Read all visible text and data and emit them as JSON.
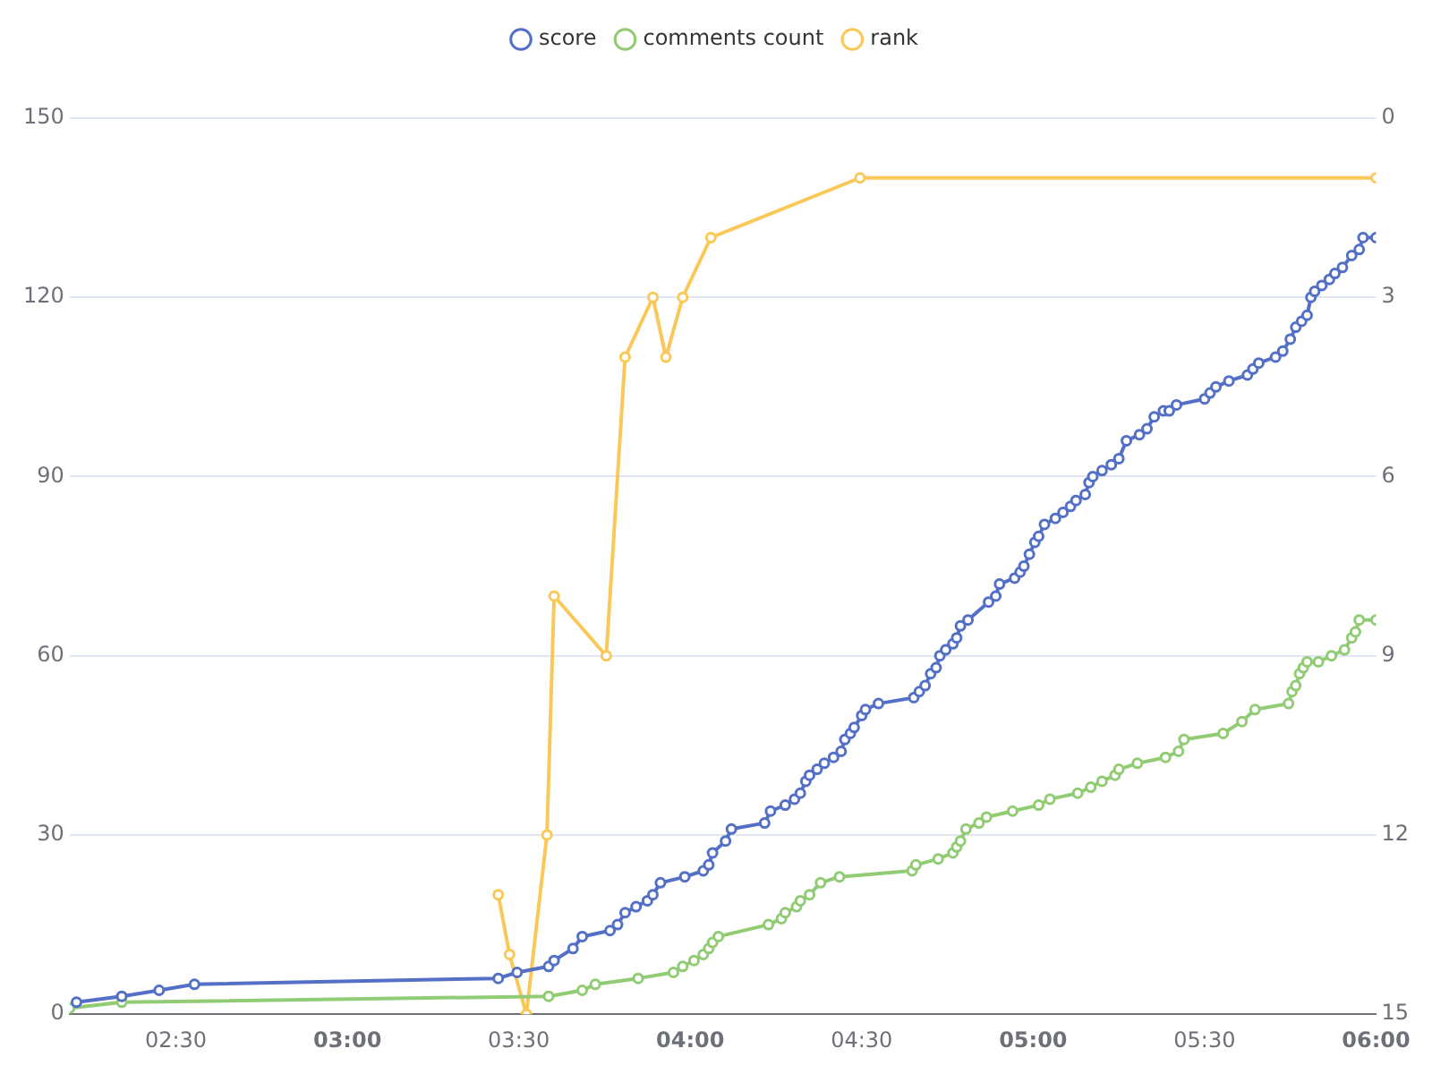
{
  "chart_data": {
    "type": "line",
    "legend": "top",
    "grid": "y",
    "marker": "circle",
    "line_style": "solid",
    "xlim": [
      2.19,
      6
    ],
    "xticks": [
      {
        "value": 2.5,
        "label": "02:30"
      },
      {
        "value": 3,
        "label": "03:00"
      },
      {
        "value": 3.5,
        "label": "03:30"
      },
      {
        "value": 4,
        "label": "04:00"
      },
      {
        "value": 4.5,
        "label": "04:30"
      },
      {
        "value": 5,
        "label": "05:00"
      },
      {
        "value": 5.5,
        "label": "05:30"
      },
      {
        "value": 6,
        "label": "06:00"
      }
    ],
    "ylim": [
      0,
      150
    ],
    "yticks": [
      0,
      30,
      60,
      90,
      120,
      150
    ],
    "y2lim": [
      15,
      0
    ],
    "y2ticks": [
      0,
      3,
      6,
      9,
      12,
      15
    ],
    "series": [
      {
        "name": "score",
        "color": "#5470c6",
        "x": [
          2.21,
          2.342,
          2.451,
          2.554,
          3.44,
          3.495,
          3.587,
          3.603,
          3.658,
          3.685,
          3.766,
          3.788,
          3.81,
          3.842,
          3.875,
          3.891,
          3.913,
          3.984,
          4.038,
          4.054,
          4.065,
          4.103,
          4.12,
          4.217,
          4.234,
          4.277,
          4.304,
          4.321,
          4.337,
          4.348,
          4.37,
          4.391,
          4.418,
          4.44,
          4.451,
          4.467,
          4.478,
          4.5,
          4.511,
          4.549,
          4.652,
          4.668,
          4.685,
          4.701,
          4.717,
          4.728,
          4.745,
          4.766,
          4.777,
          4.788,
          4.81,
          4.87,
          4.891,
          4.902,
          4.946,
          4.962,
          4.973,
          4.989,
          5.005,
          5.016,
          5.033,
          5.065,
          5.087,
          5.109,
          5.125,
          5.152,
          5.163,
          5.174,
          5.201,
          5.228,
          5.25,
          5.272,
          5.31,
          5.332,
          5.353,
          5.38,
          5.397,
          5.418,
          5.5,
          5.516,
          5.533,
          5.571,
          5.625,
          5.641,
          5.658,
          5.707,
          5.728,
          5.75,
          5.766,
          5.783,
          5.799,
          5.81,
          5.821,
          5.842,
          5.864,
          5.88,
          5.902,
          5.929,
          5.951,
          5.962,
          6.0
        ],
        "values": [
          2,
          3,
          4,
          5,
          6,
          7,
          8,
          9,
          11,
          13,
          14,
          15,
          17,
          18,
          19,
          20,
          22,
          23,
          24,
          25,
          27,
          29,
          31,
          32,
          34,
          35,
          36,
          37,
          39,
          40,
          41,
          42,
          43,
          44,
          46,
          47,
          48,
          50,
          51,
          52,
          53,
          54,
          55,
          57,
          58,
          60,
          61,
          62,
          63,
          65,
          66,
          69,
          70,
          72,
          73,
          74,
          75,
          77,
          79,
          80,
          82,
          83,
          84,
          85,
          86,
          87,
          89,
          90,
          91,
          92,
          93,
          96,
          97,
          98,
          100,
          101,
          101,
          102,
          103,
          104,
          105,
          106,
          107,
          108,
          109,
          110,
          111,
          113,
          115,
          116,
          117,
          120,
          121,
          122,
          123,
          124,
          125,
          127,
          128,
          130,
          130
        ]
      },
      {
        "name": "comments count",
        "color": "#91cc75",
        "x": [
          2.19,
          2.342,
          3.587,
          3.685,
          3.723,
          3.848,
          3.951,
          3.978,
          4.011,
          4.038,
          4.054,
          4.065,
          4.082,
          4.228,
          4.266,
          4.277,
          4.31,
          4.321,
          4.348,
          4.38,
          4.435,
          4.647,
          4.658,
          4.723,
          4.766,
          4.777,
          4.788,
          4.804,
          4.842,
          4.864,
          4.94,
          5.016,
          5.049,
          5.13,
          5.168,
          5.201,
          5.239,
          5.25,
          5.304,
          5.386,
          5.424,
          5.44,
          5.554,
          5.609,
          5.647,
          5.745,
          5.755,
          5.766,
          5.777,
          5.788,
          5.799,
          5.832,
          5.87,
          5.908,
          5.929,
          5.94,
          5.951,
          6.0
        ],
        "values": [
          1,
          2,
          3,
          4,
          5,
          6,
          7,
          8,
          9,
          10,
          11,
          12,
          13,
          15,
          16,
          17,
          18,
          19,
          20,
          22,
          23,
          24,
          25,
          26,
          27,
          28,
          29,
          31,
          32,
          33,
          34,
          35,
          36,
          37,
          38,
          39,
          40,
          41,
          42,
          43,
          44,
          46,
          47,
          49,
          51,
          52,
          54,
          55,
          57,
          58,
          59,
          59,
          60,
          61,
          63,
          64,
          66,
          66
        ]
      },
      {
        "name": "rank",
        "color": "#fac858",
        "axis": "y2",
        "x": [
          3.44,
          3.473,
          3.522,
          3.582,
          3.603,
          3.755,
          3.81,
          3.891,
          3.929,
          3.978,
          4.06,
          4.495,
          6.0
        ],
        "values": [
          13,
          14,
          15,
          12,
          8,
          9,
          4,
          3,
          4,
          3,
          2,
          1,
          1
        ]
      }
    ]
  }
}
